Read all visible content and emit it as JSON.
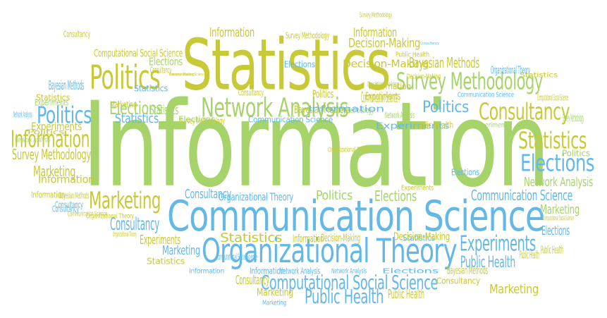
{
  "colors": {
    "light_green": "#a6d46a",
    "olive": "#c8c936",
    "blue": "#63b8e6"
  },
  "words": [
    "Information",
    "Statistics",
    "Communication Science",
    "Organizational Theory",
    "Politics",
    "Network Analysis",
    "Survey Methodology",
    "Consultancy",
    "Elections",
    "Statistics",
    "Politics",
    "Information",
    "Marketing",
    "Experiments",
    "Public Health",
    "Computational Social Science",
    "Decision-Making",
    "Bayesian Methods",
    "Elections",
    "Statistics",
    "Politics",
    "Information",
    "Consultancy",
    "Communication Science",
    "Public Health",
    "Marketing",
    "Survey Methodology",
    "Bayesian Methods",
    "Information",
    "Decision-Making",
    "Elections",
    "Computational Social Science",
    "Information",
    "Politics",
    "Elections",
    "Organizational Theory",
    "Communication Science",
    "Consultancy",
    "Experiments",
    "Network Analysis",
    "Marketing",
    "Statistics",
    "Information",
    "Survey Methodology",
    "Network Analysis",
    "Marketing",
    "Consultancy",
    "Communication Science",
    "Experiments",
    "Elections",
    "Marketing",
    "Public Health",
    "Statistics",
    "Decision-Making",
    "Consultancy",
    "Bayesian Methods",
    "Information",
    "Statistics",
    "Public Health",
    "Consultancy",
    "Marketing",
    "Experiments",
    "Survey Methodology",
    "Politics",
    "Elections",
    "Computational Social Science",
    "Public Health",
    "Statistics",
    "Experiments",
    "Network Analysis",
    "Information",
    "Consultancy",
    "Decision-Making",
    "Bayesian Methods",
    "Politics",
    "Statistics",
    "Elections",
    "Marketing",
    "Consultancy",
    "Communication Science",
    "Experiments",
    "Network Analysis",
    "Survey Methodology",
    "Organizational Theory",
    "Information",
    "Network Analysis",
    "Organizational Theory",
    "Computational Social Science",
    "Public Health",
    "Decision-Making",
    "Survey Methodology",
    "Experiments",
    "Statistics",
    "Politics",
    "Survey Methodology",
    "Consultancy",
    "Elections",
    "Consultancy",
    "Marketing",
    "Bayesian Methods",
    "Decision-Making",
    "Statistics",
    "Organizational Theory",
    "Information",
    "Computational Social Science",
    "Information",
    "Network Analysis",
    "Elections",
    "Experiments",
    "Communication Science",
    "Organizational Theory",
    "Public Health",
    "Decision-Making",
    "Consultancy",
    "Communication Science"
  ]
}
